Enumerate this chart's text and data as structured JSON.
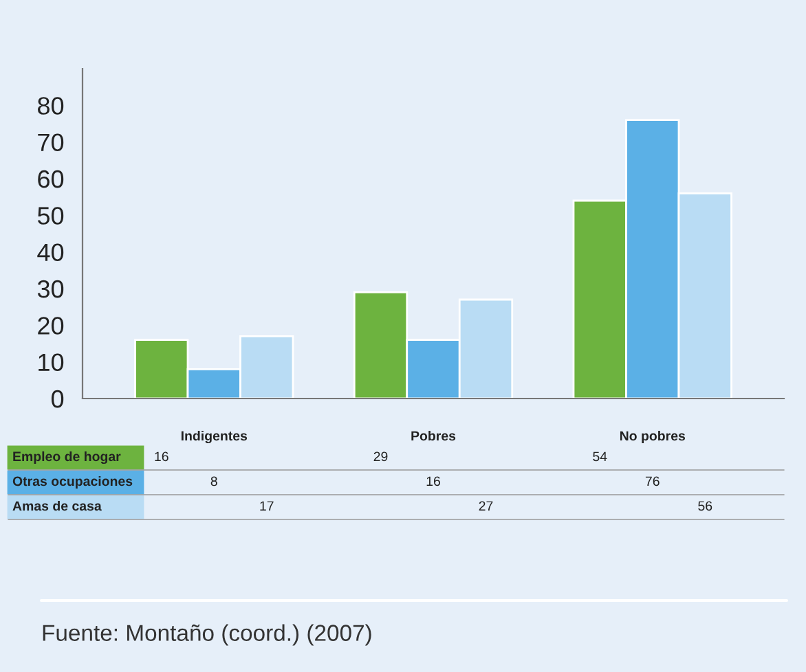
{
  "chart_data": {
    "type": "bar",
    "categories": [
      "Indigentes",
      "Pobres",
      "No pobres"
    ],
    "series": [
      {
        "name": "Empleo de hogar",
        "color": "#6db33f",
        "values": [
          16,
          29,
          54
        ]
      },
      {
        "name": "Otras ocupaciones",
        "color": "#5bb0e6",
        "values": [
          8,
          16,
          76
        ]
      },
      {
        "name": "Amas de casa",
        "color": "#b9dcf4",
        "values": [
          17,
          27,
          56
        ]
      }
    ],
    "ylim": [
      0,
      90
    ],
    "yticks": [
      0,
      10,
      20,
      30,
      40,
      50,
      60,
      70,
      80
    ],
    "grid": false,
    "legend": "bottom",
    "data_labels": true,
    "annotations": [
      "Fuente: Montaño (coord.) (2007)"
    ]
  }
}
